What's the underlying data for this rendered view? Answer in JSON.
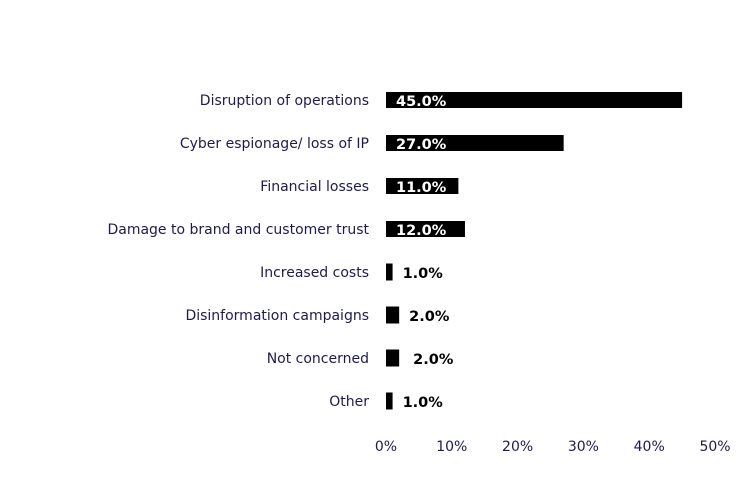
{
  "chart_data": {
    "type": "bar",
    "orientation": "horizontal",
    "title": "",
    "xlabel": "",
    "ylabel": "",
    "categories": [
      "Disruption of operations",
      "Cyber espionage/ loss of IP",
      "Financial losses",
      "Damage to brand and customer trust",
      "Increased costs",
      "Disinformation campaigns",
      "Not concerned",
      "Other"
    ],
    "values": [
      45.0,
      27.0,
      11.0,
      12.0,
      1.0,
      2.0,
      2.0,
      1.0
    ],
    "value_labels": [
      "45.0%",
      "27.0%",
      "11.0%",
      "12.0%",
      "1.0%",
      "2.0%",
      "2.0%",
      "1.0%"
    ],
    "xlim": [
      0,
      50
    ],
    "xticks": [
      0,
      10,
      20,
      30,
      40,
      50
    ],
    "xtick_labels": [
      "0%",
      "10%",
      "20%",
      "30%",
      "40%",
      "50%"
    ],
    "grid": false,
    "legend": "none",
    "colors": {
      "bar": "#000000",
      "label": "#1f1a4d",
      "value_inside": "#ffffff",
      "value_outside": "#000000"
    }
  }
}
